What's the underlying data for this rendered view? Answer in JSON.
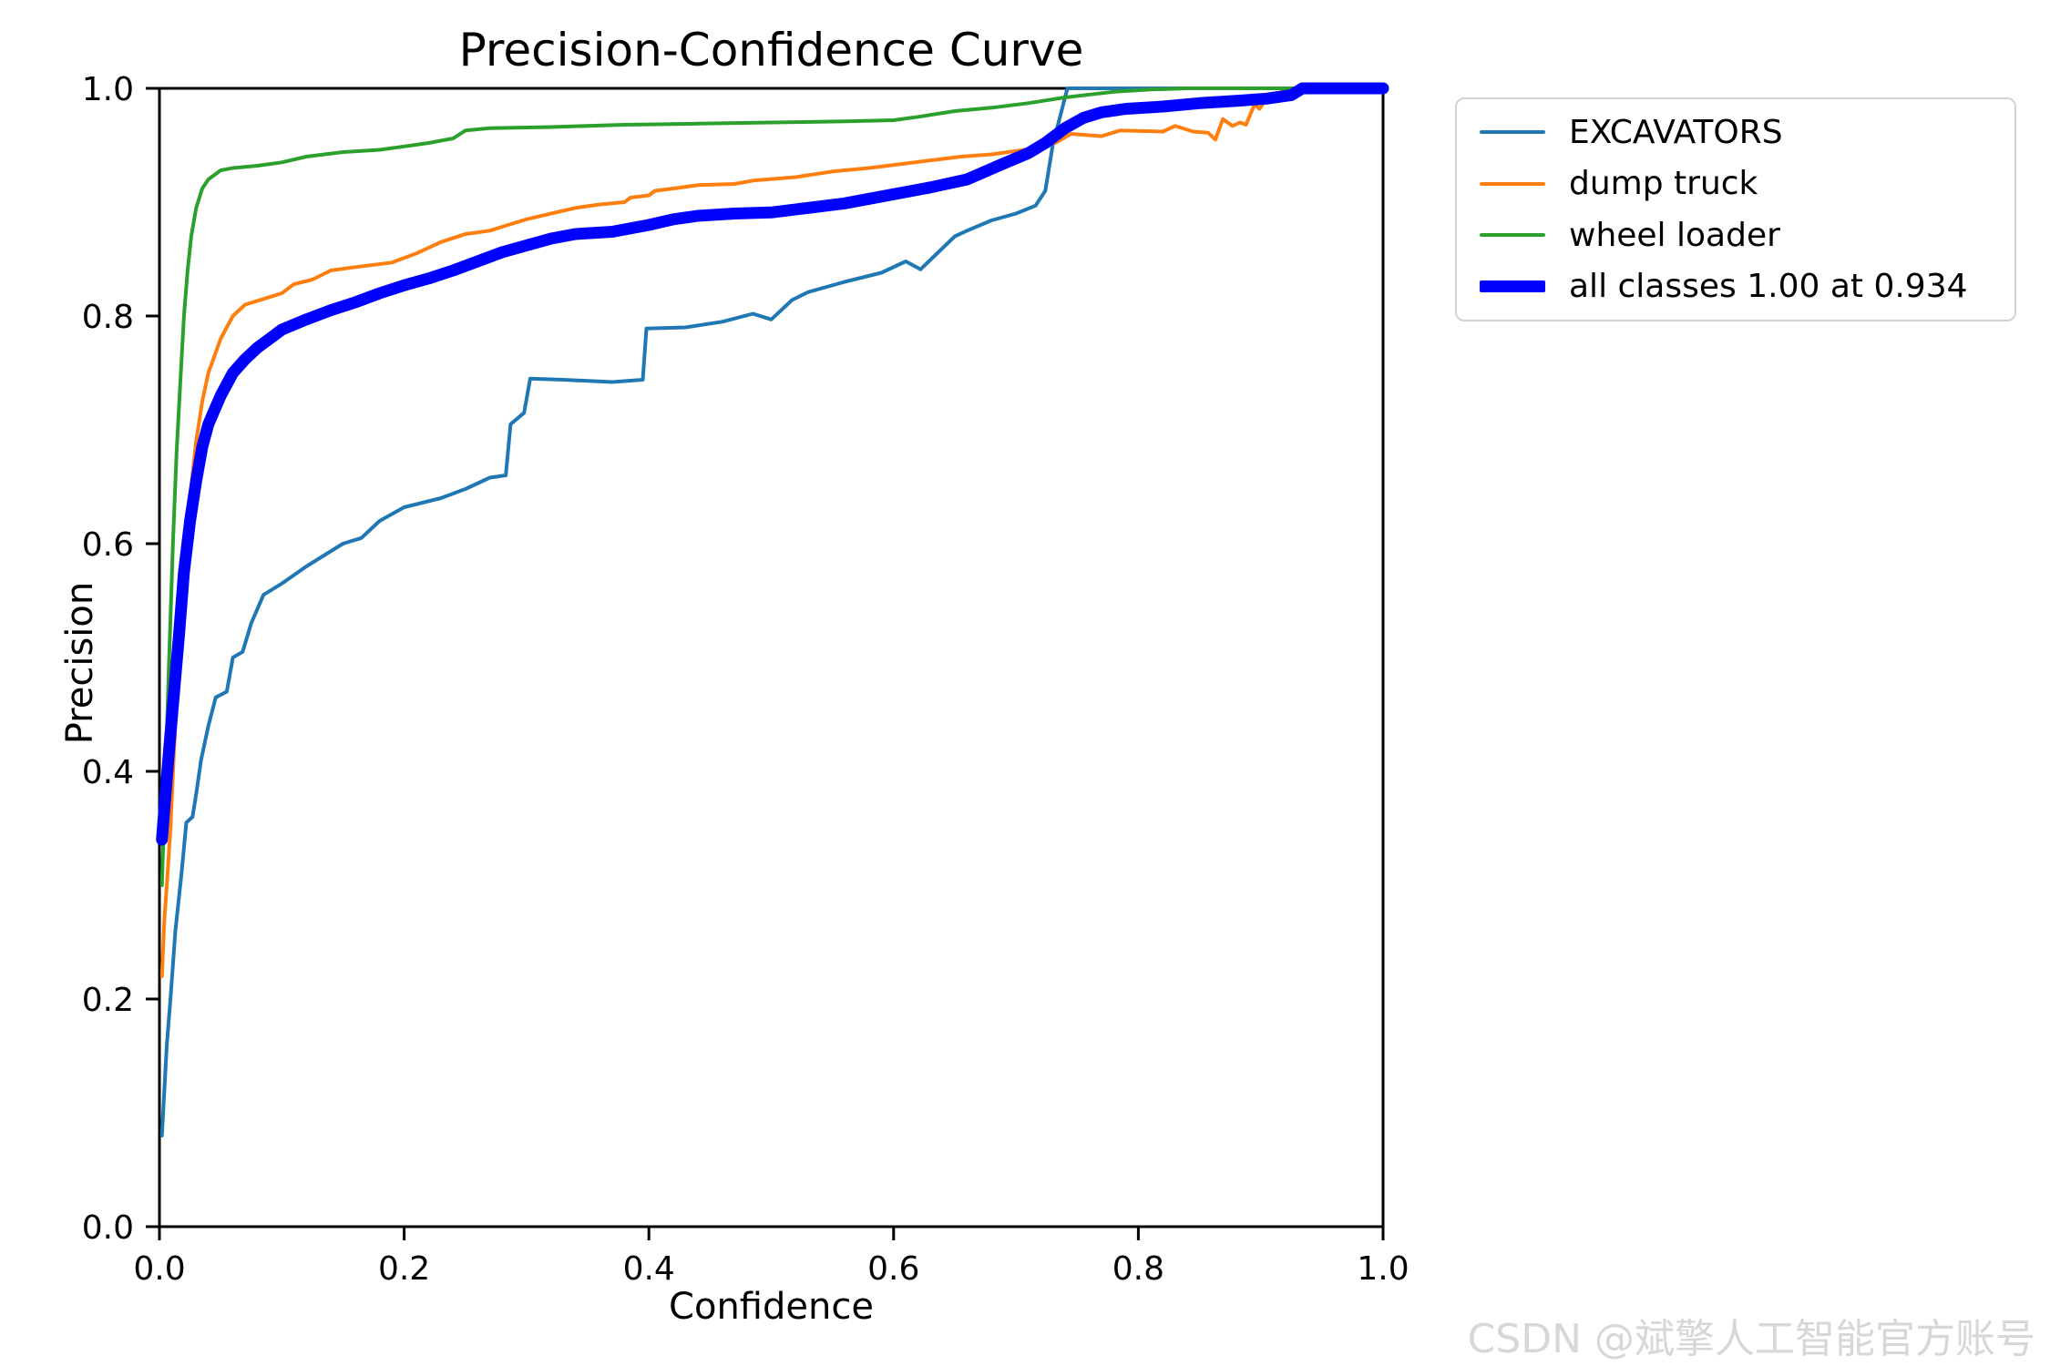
{
  "title": "Precision-Confidence Curve",
  "watermark": "CSDN @斌擎人工智能官方账号",
  "legend": {
    "items": [
      {
        "label": "EXCAVATORS",
        "color": "#1f77b4",
        "thickness": 4
      },
      {
        "label": "dump truck",
        "color": "#ff7f0e",
        "thickness": 4
      },
      {
        "label": "wheel loader",
        "color": "#2ca02c",
        "thickness": 4
      },
      {
        "label": "all classes 1.00 at 0.934",
        "color": "#0000ff",
        "thickness": 13
      }
    ]
  },
  "chart_data": {
    "type": "line",
    "title": "Precision-Confidence Curve",
    "xlabel": "Confidence",
    "ylabel": "Precision",
    "xlim": [
      0.0,
      1.0
    ],
    "ylim": [
      0.0,
      1.0
    ],
    "x_ticks": [
      0.0,
      0.2,
      0.4,
      0.6,
      0.8,
      1.0
    ],
    "y_ticks": [
      0.0,
      0.2,
      0.4,
      0.6,
      0.8,
      1.0
    ],
    "x_tick_labels": [
      "0.0",
      "0.2",
      "0.4",
      "0.6",
      "0.8",
      "1.0"
    ],
    "y_tick_labels": [
      "0.0",
      "0.2",
      "0.4",
      "0.6",
      "0.8",
      "1.0"
    ],
    "grid": false,
    "legend_position": "upper right, outside axes",
    "spine_color": "#000000",
    "annotation": "all classes reaches precision 1.00 at confidence 0.934",
    "series": [
      {
        "name": "EXCAVATORS",
        "color": "#1f77b4",
        "width": 4,
        "points": [
          [
            0.002,
            0.08
          ],
          [
            0.004,
            0.12
          ],
          [
            0.006,
            0.16
          ],
          [
            0.009,
            0.2
          ],
          [
            0.013,
            0.26
          ],
          [
            0.018,
            0.31
          ],
          [
            0.022,
            0.355
          ],
          [
            0.027,
            0.36
          ],
          [
            0.03,
            0.38
          ],
          [
            0.034,
            0.41
          ],
          [
            0.04,
            0.44
          ],
          [
            0.046,
            0.465
          ],
          [
            0.055,
            0.47
          ],
          [
            0.06,
            0.5
          ],
          [
            0.068,
            0.505
          ],
          [
            0.075,
            0.53
          ],
          [
            0.085,
            0.555
          ],
          [
            0.1,
            0.565
          ],
          [
            0.12,
            0.58
          ],
          [
            0.135,
            0.59
          ],
          [
            0.15,
            0.6
          ],
          [
            0.165,
            0.605
          ],
          [
            0.18,
            0.62
          ],
          [
            0.2,
            0.632
          ],
          [
            0.23,
            0.64
          ],
          [
            0.25,
            0.648
          ],
          [
            0.27,
            0.658
          ],
          [
            0.283,
            0.66
          ],
          [
            0.287,
            0.705
          ],
          [
            0.298,
            0.715
          ],
          [
            0.303,
            0.745
          ],
          [
            0.33,
            0.744
          ],
          [
            0.37,
            0.742
          ],
          [
            0.395,
            0.744
          ],
          [
            0.398,
            0.789
          ],
          [
            0.43,
            0.79
          ],
          [
            0.46,
            0.795
          ],
          [
            0.485,
            0.802
          ],
          [
            0.5,
            0.797
          ],
          [
            0.517,
            0.814
          ],
          [
            0.53,
            0.821
          ],
          [
            0.56,
            0.83
          ],
          [
            0.59,
            0.838
          ],
          [
            0.61,
            0.848
          ],
          [
            0.622,
            0.841
          ],
          [
            0.65,
            0.87
          ],
          [
            0.66,
            0.875
          ],
          [
            0.68,
            0.884
          ],
          [
            0.7,
            0.89
          ],
          [
            0.716,
            0.897
          ],
          [
            0.724,
            0.91
          ],
          [
            0.73,
            0.95
          ],
          [
            0.742,
            1.0
          ],
          [
            1.0,
            1.0
          ]
        ]
      },
      {
        "name": "dump truck",
        "color": "#ff7f0e",
        "width": 4,
        "points": [
          [
            0.002,
            0.22
          ],
          [
            0.004,
            0.27
          ],
          [
            0.006,
            0.3
          ],
          [
            0.009,
            0.35
          ],
          [
            0.012,
            0.42
          ],
          [
            0.015,
            0.48
          ],
          [
            0.018,
            0.54
          ],
          [
            0.022,
            0.6
          ],
          [
            0.026,
            0.65
          ],
          [
            0.03,
            0.69
          ],
          [
            0.035,
            0.725
          ],
          [
            0.04,
            0.75
          ],
          [
            0.05,
            0.78
          ],
          [
            0.06,
            0.8
          ],
          [
            0.07,
            0.81
          ],
          [
            0.085,
            0.815
          ],
          [
            0.1,
            0.82
          ],
          [
            0.11,
            0.828
          ],
          [
            0.125,
            0.832
          ],
          [
            0.14,
            0.84
          ],
          [
            0.16,
            0.843
          ],
          [
            0.19,
            0.847
          ],
          [
            0.21,
            0.855
          ],
          [
            0.23,
            0.865
          ],
          [
            0.25,
            0.872
          ],
          [
            0.27,
            0.875
          ],
          [
            0.285,
            0.88
          ],
          [
            0.3,
            0.885
          ],
          [
            0.32,
            0.89
          ],
          [
            0.34,
            0.895
          ],
          [
            0.36,
            0.898
          ],
          [
            0.38,
            0.9
          ],
          [
            0.385,
            0.904
          ],
          [
            0.4,
            0.906
          ],
          [
            0.405,
            0.91
          ],
          [
            0.42,
            0.912
          ],
          [
            0.44,
            0.915
          ],
          [
            0.47,
            0.916
          ],
          [
            0.485,
            0.919
          ],
          [
            0.52,
            0.922
          ],
          [
            0.55,
            0.927
          ],
          [
            0.58,
            0.93
          ],
          [
            0.61,
            0.934
          ],
          [
            0.64,
            0.938
          ],
          [
            0.655,
            0.94
          ],
          [
            0.68,
            0.942
          ],
          [
            0.7,
            0.945
          ],
          [
            0.72,
            0.948
          ],
          [
            0.726,
            0.955
          ],
          [
            0.732,
            0.952
          ],
          [
            0.745,
            0.96
          ],
          [
            0.77,
            0.958
          ],
          [
            0.785,
            0.963
          ],
          [
            0.82,
            0.962
          ],
          [
            0.83,
            0.967
          ],
          [
            0.845,
            0.962
          ],
          [
            0.857,
            0.961
          ],
          [
            0.863,
            0.955
          ],
          [
            0.869,
            0.973
          ],
          [
            0.877,
            0.967
          ],
          [
            0.883,
            0.97
          ],
          [
            0.888,
            0.968
          ],
          [
            0.895,
            0.986
          ],
          [
            0.899,
            0.982
          ],
          [
            0.903,
            0.988
          ],
          [
            0.907,
            0.991
          ],
          [
            0.912,
            0.995
          ],
          [
            0.92,
            0.998
          ],
          [
            0.93,
            1.0
          ],
          [
            1.0,
            1.0
          ]
        ]
      },
      {
        "name": "wheel loader",
        "color": "#2ca02c",
        "width": 4,
        "points": [
          [
            0.002,
            0.3
          ],
          [
            0.005,
            0.4
          ],
          [
            0.008,
            0.5
          ],
          [
            0.011,
            0.6
          ],
          [
            0.014,
            0.68
          ],
          [
            0.017,
            0.74
          ],
          [
            0.02,
            0.8
          ],
          [
            0.023,
            0.84
          ],
          [
            0.026,
            0.87
          ],
          [
            0.03,
            0.895
          ],
          [
            0.035,
            0.912
          ],
          [
            0.04,
            0.92
          ],
          [
            0.05,
            0.928
          ],
          [
            0.06,
            0.93
          ],
          [
            0.08,
            0.932
          ],
          [
            0.1,
            0.935
          ],
          [
            0.12,
            0.94
          ],
          [
            0.15,
            0.944
          ],
          [
            0.18,
            0.946
          ],
          [
            0.2,
            0.949
          ],
          [
            0.22,
            0.952
          ],
          [
            0.24,
            0.956
          ],
          [
            0.25,
            0.963
          ],
          [
            0.27,
            0.965
          ],
          [
            0.32,
            0.966
          ],
          [
            0.38,
            0.968
          ],
          [
            0.44,
            0.969
          ],
          [
            0.5,
            0.97
          ],
          [
            0.56,
            0.971
          ],
          [
            0.6,
            0.972
          ],
          [
            0.62,
            0.975
          ],
          [
            0.65,
            0.98
          ],
          [
            0.68,
            0.983
          ],
          [
            0.71,
            0.987
          ],
          [
            0.74,
            0.992
          ],
          [
            0.78,
            0.997
          ],
          [
            0.81,
            0.999
          ],
          [
            0.84,
            1.0
          ],
          [
            1.0,
            1.0
          ]
        ]
      },
      {
        "name": "all classes",
        "color": "#0000ff",
        "width": 13,
        "points": [
          [
            0.002,
            0.34
          ],
          [
            0.005,
            0.38
          ],
          [
            0.008,
            0.42
          ],
          [
            0.012,
            0.47
          ],
          [
            0.016,
            0.52
          ],
          [
            0.02,
            0.575
          ],
          [
            0.025,
            0.62
          ],
          [
            0.03,
            0.655
          ],
          [
            0.035,
            0.685
          ],
          [
            0.04,
            0.705
          ],
          [
            0.05,
            0.73
          ],
          [
            0.06,
            0.75
          ],
          [
            0.07,
            0.762
          ],
          [
            0.08,
            0.772
          ],
          [
            0.09,
            0.78
          ],
          [
            0.1,
            0.788
          ],
          [
            0.12,
            0.797
          ],
          [
            0.14,
            0.805
          ],
          [
            0.16,
            0.812
          ],
          [
            0.18,
            0.82
          ],
          [
            0.2,
            0.827
          ],
          [
            0.22,
            0.833
          ],
          [
            0.24,
            0.84
          ],
          [
            0.26,
            0.848
          ],
          [
            0.28,
            0.856
          ],
          [
            0.3,
            0.862
          ],
          [
            0.32,
            0.868
          ],
          [
            0.34,
            0.872
          ],
          [
            0.37,
            0.874
          ],
          [
            0.4,
            0.88
          ],
          [
            0.42,
            0.885
          ],
          [
            0.44,
            0.888
          ],
          [
            0.47,
            0.89
          ],
          [
            0.5,
            0.891
          ],
          [
            0.53,
            0.895
          ],
          [
            0.56,
            0.899
          ],
          [
            0.6,
            0.907
          ],
          [
            0.63,
            0.913
          ],
          [
            0.66,
            0.92
          ],
          [
            0.69,
            0.934
          ],
          [
            0.71,
            0.943
          ],
          [
            0.724,
            0.952
          ],
          [
            0.74,
            0.965
          ],
          [
            0.755,
            0.974
          ],
          [
            0.77,
            0.979
          ],
          [
            0.79,
            0.982
          ],
          [
            0.82,
            0.984
          ],
          [
            0.85,
            0.987
          ],
          [
            0.88,
            0.989
          ],
          [
            0.905,
            0.991
          ],
          [
            0.925,
            0.994
          ],
          [
            0.934,
            1.0
          ],
          [
            1.0,
            1.0
          ]
        ]
      }
    ]
  }
}
